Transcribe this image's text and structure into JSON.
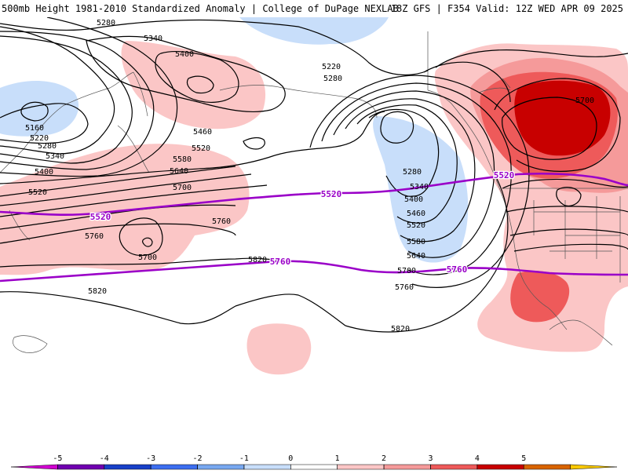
{
  "header": {
    "title": "500mb Height 1981-2010 Standardized Anomaly | College of DuPage NEXLAB",
    "run_info": "18Z GFS | F354 Valid: 12Z WED APR 09 2025"
  },
  "colors": {
    "pos1": "#fbc6c6",
    "pos2": "#f59a9a",
    "pos3": "#ee5a5a",
    "pos4": "#c80000",
    "neg1": "#c8defa",
    "thickness": "#9a00c8",
    "contour": "#000000",
    "coast": "#555555"
  },
  "height_contour_labels": [
    "5280",
    "5340",
    "5400",
    "5220",
    "5280",
    "5160",
    "5220",
    "5280",
    "5340",
    "5400",
    "5460",
    "5520",
    "5580",
    "5640",
    "5700",
    "5520",
    "5760",
    "5700",
    "5760",
    "5820",
    "5820",
    "5820",
    "5280",
    "5340",
    "5400",
    "5460",
    "5520",
    "5580",
    "5640",
    "5700",
    "5760",
    "5700"
  ],
  "thickness_labels": [
    "5520",
    "5520",
    "5520",
    "5760",
    "5760"
  ],
  "colorbar": {
    "labels": [
      "-5",
      "-4",
      "-3",
      "-2",
      "-1",
      "0",
      "1",
      "2",
      "3",
      "4",
      "5"
    ],
    "colors": [
      "#d000d0",
      "#7000b0",
      "#1840c8",
      "#3c6ef0",
      "#78a8f0",
      "#c8defa",
      "#ffffff",
      "#fbc6c6",
      "#f59a9a",
      "#ee5a5a",
      "#c80000",
      "#d86400",
      "#f8c800"
    ]
  }
}
